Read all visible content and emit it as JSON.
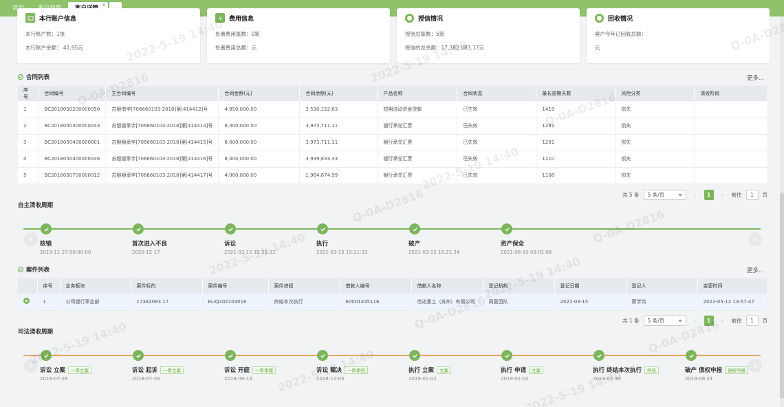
{
  "tabs": [
    {
      "label": "首页"
    },
    {
      "label": "客户视图"
    },
    {
      "label": "客户详情",
      "active": true,
      "close": "×"
    }
  ],
  "cards": [
    {
      "title": "本行账户信息",
      "lines": [
        "本行账户数：1张",
        "本行账户余额： 41.95元"
      ]
    },
    {
      "title": "费用信息",
      "lines": [
        "处置费用笔数：0笔",
        "处置费用总额：元"
      ]
    },
    {
      "title": "授信情况",
      "lines": [
        "授信总笔数：5笔",
        "授信的总余额：17,382,083.17元"
      ]
    },
    {
      "title": "回收情况",
      "lines": [
        "客户今年已回收总额：",
        "元"
      ]
    }
  ],
  "contracts": {
    "title": "合同列表",
    "more": "更多...",
    "columns": [
      "序号",
      "合同编号",
      "主合同编号",
      "合同金额(元)",
      "合同余额(元)",
      "产品名称",
      "合同状态",
      "最长逾期天数",
      "风险分类",
      "清收阶段"
    ],
    "rows": [
      [
        "1",
        "BC2018050200000050",
        "苏银借字[706660103-2018]第[414412]号",
        "4,950,000.00",
        "3,530,152.63",
        "短期流动资金贷款",
        "已生效",
        "1419",
        "损失",
        ""
      ],
      [
        "2",
        "BC2018050300000043",
        "苏银银承字[706660103-2018]第[414414]号",
        "8,000,000.00",
        "3,973,711.11",
        "银行承兑汇票",
        "已失效",
        "1291",
        "损失",
        ""
      ],
      [
        "3",
        "BC2018050400000001",
        "苏银银承字[706660103-2018]第[414415]号",
        "8,000,000.00",
        "3,973,711.11",
        "银行承兑汇票",
        "已失效",
        "1291",
        "损失",
        ""
      ],
      [
        "4",
        "BC2018050400000046",
        "苏银银承字[706660103-2018]第[414416]号",
        "8,000,000.00",
        "3,939,833.33",
        "银行承兑汇票",
        "已失效",
        "1110",
        "损失",
        ""
      ],
      [
        "5",
        "BC2018050700000012",
        "苏银银承字[706660103-2018]第[414417]号",
        "4,000,000.00",
        "1,964,674.99",
        "银行承兑汇票",
        "已失效",
        "1108",
        "损失",
        ""
      ]
    ],
    "pager": {
      "total": "共 5 条",
      "size": "5 条/页",
      "page": "1",
      "goto": "前往",
      "goto_value": "1",
      "unit": "页"
    }
  },
  "self_cycle": {
    "title": "自主清收周期",
    "nodes": [
      {
        "label": "核销",
        "date": "2019-11-27 00:00:00"
      },
      {
        "label": "首次进入不良",
        "date": "2020-12-17"
      },
      {
        "label": "诉讼",
        "date": "2021-03-15 15:21:31"
      },
      {
        "label": "执行",
        "date": "2021-03-15 15:21:33"
      },
      {
        "label": "破产",
        "date": "2021-03-15 15:21:34"
      },
      {
        "label": "资产保全",
        "date": "2021-06-10 09:01:06"
      }
    ]
  },
  "cases": {
    "title": "案件列表",
    "more": "更多...",
    "columns": [
      "",
      "序号",
      "业务板块",
      "案件标的",
      "案件编号",
      "案件进程",
      "借款人编号",
      "借款人名称",
      "登记机构",
      "登记日期",
      "登记人",
      "变更时间"
    ],
    "rows": [
      [
        "",
        "1",
        "公司银行事业部",
        "17382083.17",
        "ELIQ202103016",
        "终结本次执行",
        "60001445116",
        "信达重工（苏州）有限公司",
        "周嘉团队",
        "2021-03-15",
        "蔡学伟",
        "2022-05-12 13:57:47"
      ]
    ],
    "pager": {
      "total": "共 1 条",
      "size": "5 条/页",
      "page": "1",
      "goto": "前往",
      "goto_value": "1",
      "unit": "页"
    }
  },
  "judicial_cycle": {
    "title": "司法清收周期",
    "nodes": [
      {
        "label": "诉讼 立案",
        "tag": "一审立案",
        "date": "2018-07-26"
      },
      {
        "label": "诉讼 起诉",
        "tag": "一审立案",
        "date": "2018-07-26"
      },
      {
        "label": "诉讼 开庭",
        "tag": "一审审理",
        "date": "2018-09-13"
      },
      {
        "label": "诉讼 裁决",
        "tag": "一审审结",
        "date": "2018-11-05"
      },
      {
        "label": "执行 立案",
        "tag": "立案",
        "date": "2019-01-02"
      },
      {
        "label": "执行 申请",
        "tag": "立案",
        "date": "2019-01-02"
      },
      {
        "label": "执行 终结本次执行",
        "tag": "终结",
        "date": "2019-07-30"
      },
      {
        "label": "破产 债权申报",
        "tag": "债权申报",
        "date": "2019-08-21"
      }
    ]
  },
  "watermark": {
    "date": "2022-5-19 14:40",
    "id": "Q-0A-D2816"
  },
  "colors": {
    "accent": "#7cb65a",
    "judicial_line": "#e8a463"
  }
}
